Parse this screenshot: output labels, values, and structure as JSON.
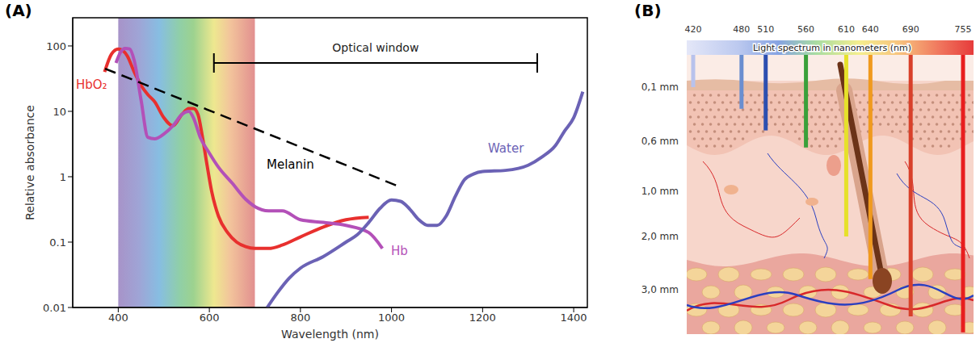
{
  "chart_data": {
    "type": "line",
    "panel_label": "(A)",
    "x_label": "Wavelength (nm)",
    "y_label": "Relative absorbance",
    "xlim": [
      300,
      1430
    ],
    "xticks": [
      400,
      600,
      800,
      1000,
      1200,
      1400
    ],
    "ylim": [
      0.01,
      270
    ],
    "yticks": [
      0.01,
      0.1,
      1,
      10,
      100
    ],
    "log": "y",
    "grid": false,
    "spectrum_band": [
      400,
      700
    ],
    "optical_window": {
      "label": "Optical window",
      "range": [
        610,
        1320
      ],
      "level": 55
    },
    "series": [
      {
        "name": "HbO₂",
        "color": "#e8302e",
        "x": [
          370,
          385,
          400,
          410,
          420,
          435,
          450,
          465,
          480,
          500,
          520,
          540,
          555,
          565,
          575,
          585,
          595,
          605,
          620,
          640,
          660,
          680,
          700,
          730,
          760,
          800,
          850,
          900,
          950
        ],
        "values": [
          40,
          75,
          90,
          85,
          70,
          40,
          25,
          18,
          14,
          8,
          6,
          9,
          11,
          11,
          9,
          4,
          1.5,
          0.6,
          0.25,
          0.14,
          0.1,
          0.085,
          0.08,
          0.08,
          0.09,
          0.12,
          0.17,
          0.22,
          0.24
        ]
      },
      {
        "name": "Hb",
        "color": "#b350b8",
        "x": [
          395,
          405,
          415,
          425,
          435,
          450,
          465,
          480,
          500,
          520,
          540,
          555,
          565,
          580,
          600,
          620,
          650,
          680,
          700,
          730,
          760,
          800,
          850,
          900,
          950,
          980
        ],
        "values": [
          55,
          80,
          92,
          90,
          60,
          15,
          4,
          3.8,
          4.5,
          6,
          9,
          10,
          8,
          4,
          2.3,
          1.4,
          0.8,
          0.45,
          0.35,
          0.3,
          0.3,
          0.22,
          0.2,
          0.18,
          0.14,
          0.08
        ]
      },
      {
        "name": "Water",
        "color": "#6b62b5",
        "x": [
          727,
          750,
          775,
          800,
          850,
          900,
          925,
          950,
          975,
          1000,
          1020,
          1040,
          1060,
          1080,
          1100,
          1120,
          1140,
          1160,
          1180,
          1200,
          1250,
          1300,
          1330,
          1360,
          1380,
          1400,
          1420
        ],
        "values": [
          0.01,
          0.017,
          0.028,
          0.04,
          0.06,
          0.1,
          0.13,
          0.2,
          0.33,
          0.44,
          0.42,
          0.32,
          0.22,
          0.18,
          0.18,
          0.25,
          0.5,
          0.9,
          1.1,
          1.2,
          1.25,
          1.5,
          2,
          3,
          5,
          8,
          20
        ]
      },
      {
        "name": "Melanin",
        "color": "#000000",
        "line_style": "dashed",
        "x": [
          371,
          1012
        ],
        "values": [
          45,
          0.73
        ]
      }
    ]
  },
  "diagram": {
    "panel_label": "(B)",
    "spectrum_title": "Light spectrum in nanometers (nm)",
    "depth_ticks": [
      {
        "value": 0.1,
        "label": "0,1 mm"
      },
      {
        "value": 0.6,
        "label": "0,6 mm"
      },
      {
        "value": 1.0,
        "label": "1,0 mm"
      },
      {
        "value": 2.0,
        "label": "2,0 mm"
      },
      {
        "value": 3.0,
        "label": "3,0 mm"
      }
    ],
    "beams": [
      {
        "wavelength": 420,
        "color": "#b8c2ec",
        "depth": 0.1
      },
      {
        "wavelength": 480,
        "color": "#6a8ed0",
        "depth": 0.3
      },
      {
        "wavelength": 510,
        "color": "#2d4fb0",
        "depth": 0.5
      },
      {
        "wavelength": 560,
        "color": "#3aa03a",
        "depth": 0.65
      },
      {
        "wavelength": 610,
        "color": "#e6e12a",
        "depth": 2.0
      },
      {
        "wavelength": 640,
        "color": "#f09a1e",
        "depth": 2.8
      },
      {
        "wavelength": 690,
        "color": "#d8402a",
        "depth": 3.5
      },
      {
        "wavelength": 755,
        "color": "#e81e1e",
        "depth": 3.8
      }
    ]
  }
}
